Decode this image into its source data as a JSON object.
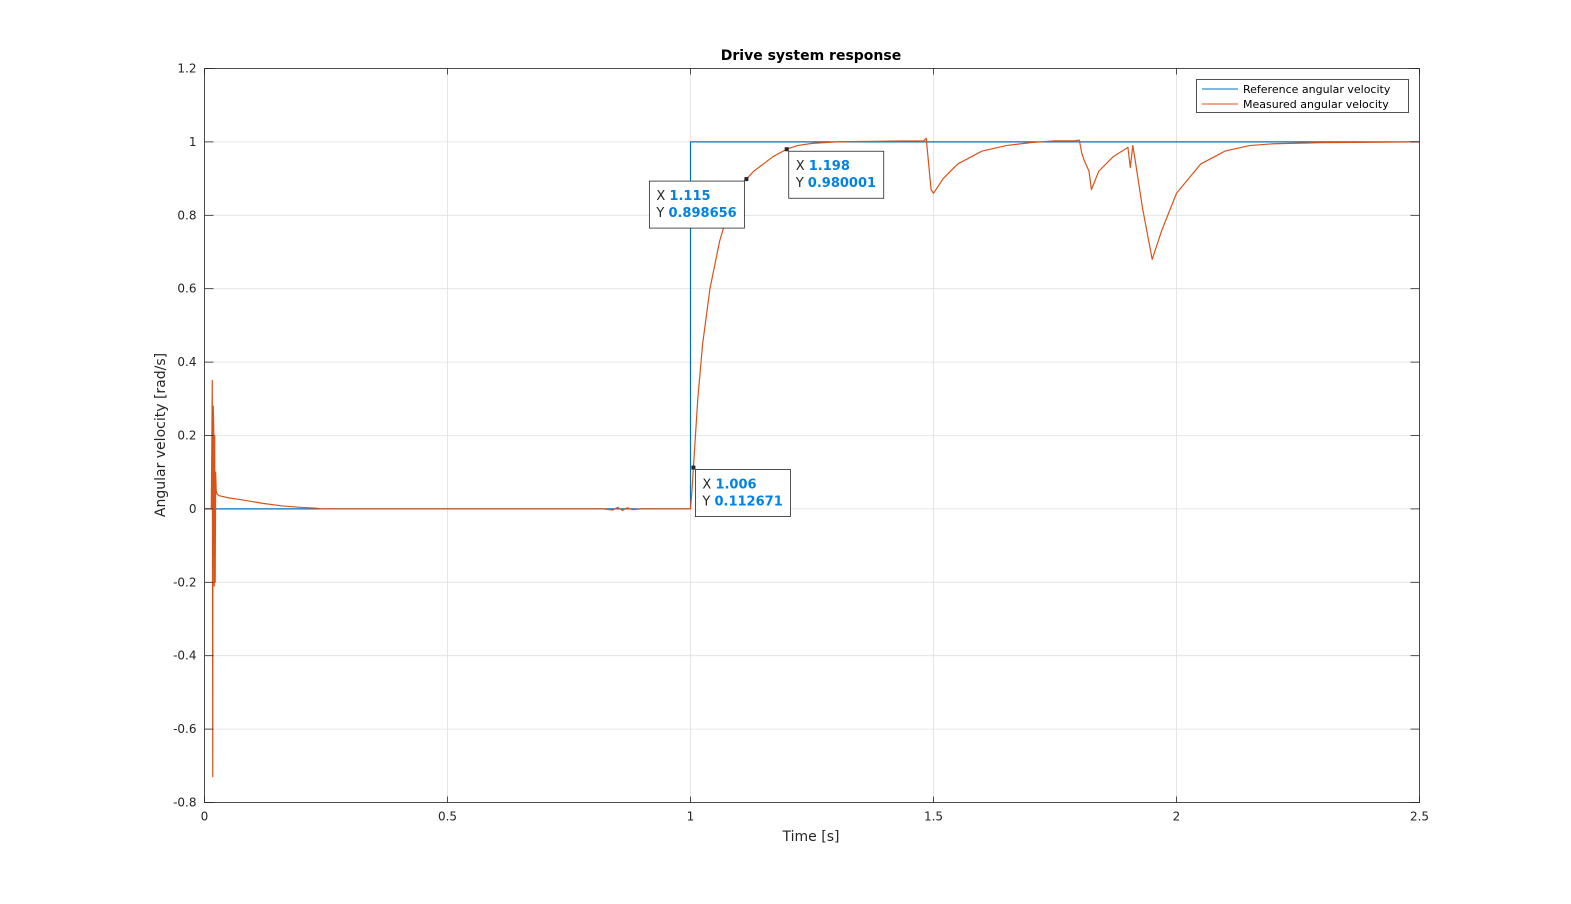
{
  "chart_data": {
    "type": "line",
    "title": "Drive system response",
    "xlabel": "Time [s]",
    "ylabel": "Angular velocity [rad/s]",
    "xlim": [
      0,
      2.5
    ],
    "ylim": [
      -0.8,
      1.2
    ],
    "xticks": [
      0,
      0.5,
      1,
      1.5,
      2,
      2.5
    ],
    "xtick_labels": [
      "0",
      "0.5",
      "1",
      "1.5",
      "2",
      "2.5"
    ],
    "yticks": [
      -0.8,
      -0.6,
      -0.4,
      -0.2,
      0,
      0.2,
      0.4,
      0.6,
      0.8,
      1,
      1.2
    ],
    "ytick_labels": [
      "-0.8",
      "-0.6",
      "-0.4",
      "-0.2",
      "0",
      "0.2",
      "0.4",
      "0.6",
      "0.8",
      "1",
      "1.2"
    ],
    "grid": true,
    "legend_position": "top-right",
    "series": [
      {
        "name": "Reference angular velocity",
        "color": "#0072bd",
        "x": [
          0,
          1.0,
          1.0,
          2.5
        ],
        "y": [
          0,
          0,
          1,
          1
        ]
      },
      {
        "name": "Measured angular velocity",
        "color": "#d95319",
        "x": [
          0.0,
          0.014,
          0.016,
          0.017,
          0.0175,
          0.018,
          0.019,
          0.02,
          0.021,
          0.022,
          0.023,
          0.024,
          0.025,
          0.026,
          0.028,
          0.03,
          0.05,
          0.08,
          0.12,
          0.16,
          0.2,
          0.23,
          0.24,
          0.25,
          0.5,
          0.82,
          0.84,
          0.85,
          0.86,
          0.87,
          0.88,
          0.9,
          1.0,
          1.003,
          1.006,
          1.015,
          1.025,
          1.04,
          1.06,
          1.08,
          1.1,
          1.115,
          1.13,
          1.15,
          1.17,
          1.198,
          1.22,
          1.25,
          1.3,
          1.35,
          1.4,
          1.48,
          1.485,
          1.49,
          1.495,
          1.5,
          1.52,
          1.55,
          1.6,
          1.65,
          1.7,
          1.75,
          1.79,
          1.8,
          1.805,
          1.81,
          1.82,
          1.825,
          1.84,
          1.87,
          1.9,
          1.905,
          1.91,
          1.915,
          1.93,
          1.95,
          1.97,
          2.0,
          2.05,
          2.1,
          2.15,
          2.2,
          2.3,
          2.4,
          2.5
        ],
        "y": [
          0.0,
          0.0,
          0.35,
          -0.73,
          0.25,
          0.28,
          0.22,
          -0.21,
          0.2,
          -0.2,
          0.1,
          0.05,
          0.045,
          0.04,
          0.038,
          0.036,
          0.03,
          0.024,
          0.015,
          0.008,
          0.004,
          0.002,
          0.0,
          0.0,
          0.0,
          0.0,
          -0.003,
          0.004,
          -0.004,
          0.003,
          -0.002,
          0.0,
          0.0,
          0.05,
          0.112671,
          0.3,
          0.45,
          0.6,
          0.73,
          0.82,
          0.88,
          0.898656,
          0.92,
          0.94,
          0.96,
          0.980001,
          0.99,
          0.996,
          1.0,
          1.001,
          1.002,
          1.003,
          1.01,
          0.94,
          0.87,
          0.86,
          0.9,
          0.94,
          0.975,
          0.99,
          0.998,
          1.003,
          1.003,
          1.005,
          0.97,
          0.95,
          0.92,
          0.87,
          0.92,
          0.96,
          0.985,
          0.93,
          0.99,
          0.95,
          0.82,
          0.68,
          0.76,
          0.86,
          0.94,
          0.975,
          0.99,
          0.995,
          0.998,
          0.999,
          1.0
        ]
      }
    ],
    "datatips": [
      {
        "x_label": "X",
        "y_label": "Y",
        "x_text": "1.115",
        "y_text": "0.898656",
        "x": 1.115,
        "y": 0.898656,
        "placement": "upper-left"
      },
      {
        "x_label": "X",
        "y_label": "Y",
        "x_text": "1.198",
        "y_text": "0.980001",
        "x": 1.198,
        "y": 0.980001,
        "placement": "lower-right"
      },
      {
        "x_label": "X",
        "y_label": "Y",
        "x_text": "1.006",
        "y_text": "0.112671",
        "x": 1.006,
        "y": 0.112671,
        "placement": "lower-right"
      }
    ]
  }
}
